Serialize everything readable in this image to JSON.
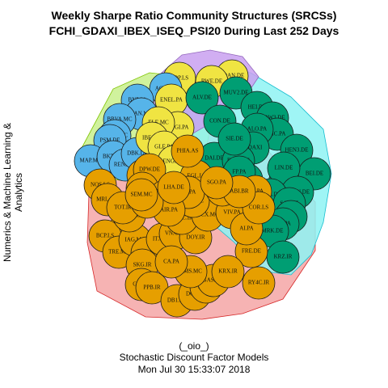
{
  "title": {
    "line1": "Weekly Sharpe Ratio Community Structures (SRCSs)",
    "line2": "FCHI_GDAXI_IBEX_ISEQ_PSI20 During Last 252 Days"
  },
  "y_label": "Numerics & Machine Learning & Analytics",
  "footer": {
    "line1": "(_oio_)",
    "line2": "Stochastic Discount Factor Models",
    "line3": "Mon Jul 30 15:33:07 2018"
  },
  "colors": {
    "orange_node": "#E69F00",
    "blue_node": "#56B4E9",
    "green_node": "#009E73",
    "yellow_node": "#F0E442",
    "orange_hull": "#F4A6A6",
    "blue_hull": "#C8F08C",
    "green_hull": "#8EF3F3",
    "yellow_hull": "#C9A0F0"
  },
  "graph": {
    "nodes": [
      {
        "label": "EDP.LS",
        "group": "yellow"
      },
      {
        "label": "EOAN.DE",
        "group": "yellow"
      },
      {
        "label": "RWE.DE",
        "group": "yellow"
      },
      {
        "label": "ACS.MC",
        "group": "blue"
      },
      {
        "label": "BNP.PA",
        "group": "blue"
      },
      {
        "label": "SAN.MC",
        "group": "blue"
      },
      {
        "label": "BBVA.MC",
        "group": "blue"
      },
      {
        "label": "CABK.MC",
        "group": "blue"
      },
      {
        "label": "PSM.DE",
        "group": "blue"
      },
      {
        "label": "MAP.MC",
        "group": "blue"
      },
      {
        "label": "BKT.MC",
        "group": "blue"
      },
      {
        "label": "RENE.LS",
        "group": "blue"
      },
      {
        "label": "DBK.DE",
        "group": "blue"
      },
      {
        "label": "ENEL.PA",
        "group": "yellow"
      },
      {
        "label": "ENGI.PA",
        "group": "yellow"
      },
      {
        "label": "ELE.MC",
        "group": "yellow"
      },
      {
        "label": "IBE.MC",
        "group": "yellow"
      },
      {
        "label": "GLE.PA",
        "group": "yellow"
      },
      {
        "label": "ENG.MC",
        "group": "yellow"
      },
      {
        "label": "ALV.DE",
        "group": "green"
      },
      {
        "label": "MUV2.DE",
        "group": "green"
      },
      {
        "label": "HEI.DE",
        "group": "green"
      },
      {
        "label": "VOW3.DE",
        "group": "green"
      },
      {
        "label": "MC.PA",
        "group": "green"
      },
      {
        "label": "ALO.PA",
        "group": "green"
      },
      {
        "label": "GDAXI",
        "group": "green"
      },
      {
        "label": "HEN3.DE",
        "group": "green"
      },
      {
        "label": "OR.PA",
        "group": "green"
      },
      {
        "label": "BEI.DE",
        "group": "green"
      },
      {
        "label": "LIN.DE",
        "group": "green"
      },
      {
        "label": "BAYN.DE",
        "group": "green"
      },
      {
        "label": "FME.DE",
        "group": "green"
      },
      {
        "label": "SAP.DE",
        "group": "green"
      },
      {
        "label": "RI.PA",
        "group": "green"
      },
      {
        "label": "SW.PA",
        "group": "green"
      },
      {
        "label": "MRK.DE",
        "group": "green"
      },
      {
        "label": "KRZ.IR",
        "group": "green"
      },
      {
        "label": "TKA.DE",
        "group": "green"
      },
      {
        "label": "CON.DE",
        "group": "green"
      },
      {
        "label": "DAI.DE",
        "group": "green"
      },
      {
        "label": "BMW.DE",
        "group": "green"
      },
      {
        "label": "SIE.DE",
        "group": "green"
      },
      {
        "label": "FP.PA",
        "group": "green"
      },
      {
        "label": "NOS.LS",
        "group": "orange"
      },
      {
        "label": "MRL.MC",
        "group": "orange"
      },
      {
        "label": "DIA.MC",
        "group": "orange"
      },
      {
        "label": "BCP.LS",
        "group": "orange"
      },
      {
        "label": "TRE.MC",
        "group": "orange"
      },
      {
        "label": "IAG.MC",
        "group": "orange"
      },
      {
        "label": "CTT.LS",
        "group": "orange"
      },
      {
        "label": "SKG.IR",
        "group": "orange"
      },
      {
        "label": "GL9.IR",
        "group": "orange"
      },
      {
        "label": "PPB.IR",
        "group": "orange"
      },
      {
        "label": "DB1.DE",
        "group": "orange"
      },
      {
        "label": "DOP.IR",
        "group": "orange"
      },
      {
        "label": "PST.IR",
        "group": "orange"
      },
      {
        "label": "GAS.MC",
        "group": "orange"
      },
      {
        "label": "AMS.MC",
        "group": "orange"
      },
      {
        "label": "TEF.MC",
        "group": "orange"
      },
      {
        "label": "DPW.DE",
        "group": "orange"
      },
      {
        "label": "SAN.PA",
        "group": "orange"
      },
      {
        "label": "ITX.MC",
        "group": "orange"
      },
      {
        "label": "VNA.DE",
        "group": "orange"
      },
      {
        "label": "DOY.IR",
        "group": "orange"
      },
      {
        "label": "FRE.DE",
        "group": "orange"
      },
      {
        "label": "KRX.IR",
        "group": "orange"
      },
      {
        "label": "RY4C.IR",
        "group": "orange"
      },
      {
        "label": "SONC.IR",
        "group": "orange"
      },
      {
        "label": "MTS.MC",
        "group": "orange"
      },
      {
        "label": "NVG.LS",
        "group": "orange"
      },
      {
        "label": "EGL.LS",
        "group": "orange"
      },
      {
        "label": "CA.PA",
        "group": "orange"
      },
      {
        "label": "GRF.MC",
        "group": "orange"
      },
      {
        "label": "ACX.MC",
        "group": "orange"
      },
      {
        "label": "REE.MC",
        "group": "orange"
      },
      {
        "label": "VIV.PA",
        "group": "orange"
      },
      {
        "label": "AI.PA",
        "group": "orange"
      },
      {
        "label": "CS.PA",
        "group": "orange"
      },
      {
        "label": "ML.PA",
        "group": "orange"
      },
      {
        "label": "UG.PA",
        "group": "orange"
      },
      {
        "label": "PHIA.AS",
        "group": "orange"
      },
      {
        "label": "IFX.DE",
        "group": "orange"
      },
      {
        "label": "COR.LS",
        "group": "orange"
      },
      {
        "label": "ABI.BR",
        "group": "orange"
      },
      {
        "label": "AIR.PA",
        "group": "orange"
      },
      {
        "label": "TOT.IR",
        "group": "orange"
      },
      {
        "label": "SGO.PA",
        "group": "orange"
      },
      {
        "label": "JMT.LS",
        "group": "orange"
      },
      {
        "label": "LHA.DE",
        "group": "orange"
      },
      {
        "label": "SEM.MC",
        "group": "orange"
      }
    ]
  }
}
